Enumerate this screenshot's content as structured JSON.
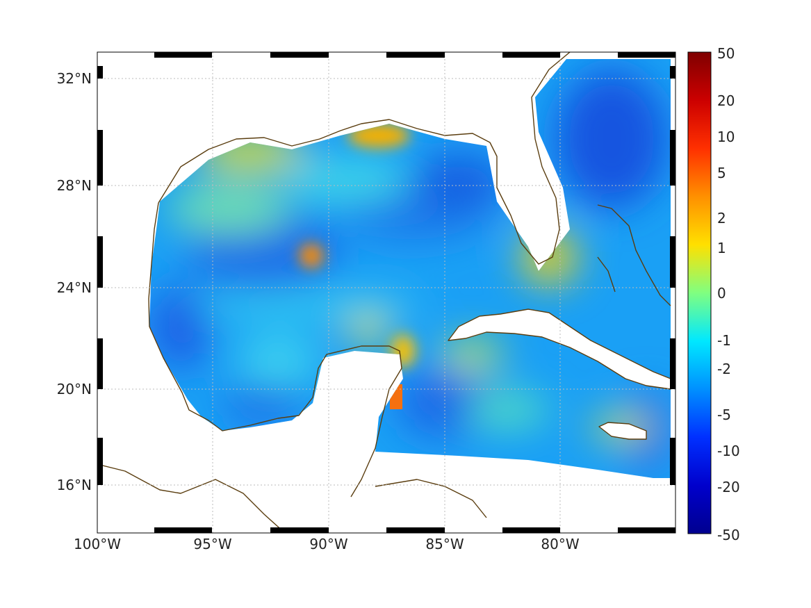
{
  "map": {
    "lon_range": [
      -100,
      -75
    ],
    "lat_range": [
      14,
      33
    ],
    "x_ticks": [
      {
        "lon": -100,
        "label": "100°W"
      },
      {
        "lon": -95,
        "label": "95°W"
      },
      {
        "lon": -90,
        "label": "90°W"
      },
      {
        "lon": -85,
        "label": "85°W"
      },
      {
        "lon": -80,
        "label": "80°W"
      }
    ],
    "y_ticks": [
      {
        "lat": 16,
        "label": "16°N"
      },
      {
        "lat": 20,
        "label": "20°N"
      },
      {
        "lat": 24,
        "label": "24°N"
      },
      {
        "lat": 28,
        "label": "28°N"
      },
      {
        "lat": 32,
        "label": "32°N"
      }
    ],
    "grid": true,
    "coastline_color": "#5a3d0f",
    "colormap": "jet"
  },
  "colorbar": {
    "ticks": [
      "50",
      "20",
      "10",
      "5",
      "2",
      "1",
      "0",
      "-1",
      "-2",
      "-5",
      "-10",
      "-20",
      "-50"
    ],
    "colors": [
      "#7f0000",
      "#ff0000",
      "#ff8000",
      "#ffff00",
      "#80ff80",
      "#00ffff",
      "#0080ff",
      "#0000ff",
      "#00008f"
    ]
  },
  "chart_data": {
    "type": "heatmap",
    "title": "",
    "xlabel": "",
    "ylabel": "",
    "xlim": [
      -100,
      -75
    ],
    "ylim": [
      14,
      33
    ],
    "color_scale_ticks": [
      50,
      20,
      10,
      5,
      2,
      1,
      0,
      -1,
      -2,
      -5,
      -10,
      -20,
      -50
    ],
    "hotspots": [
      {
        "lon": -88.5,
        "lat": 29.8,
        "value": 3
      },
      {
        "lon": -90.8,
        "lat": 25.2,
        "value": 4
      },
      {
        "lon": -87.4,
        "lat": 19.8,
        "value": 6
      },
      {
        "lon": -88.6,
        "lat": 22.2,
        "value": 2
      },
      {
        "lon": -81.0,
        "lat": 25.5,
        "value": 2
      },
      {
        "lon": -77.0,
        "lat": 18.3,
        "value": 2
      }
    ]
  }
}
